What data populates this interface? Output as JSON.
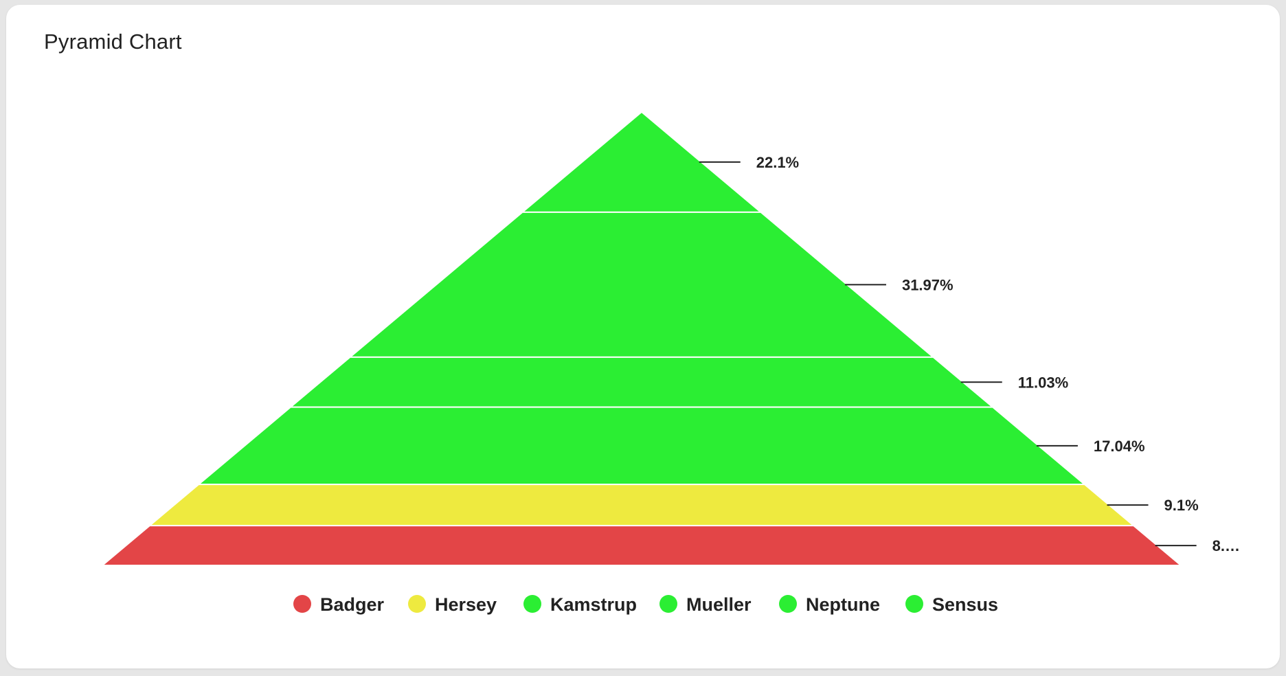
{
  "chart_data": {
    "type": "pyramid",
    "title": "Pyramid Chart",
    "segments": [
      {
        "name": "Sensus",
        "percent": 22.1,
        "label": "22.1%",
        "color": "#2bee33"
      },
      {
        "name": "Neptune",
        "percent": 31.97,
        "label": "31.97%",
        "color": "#2bee33"
      },
      {
        "name": "Mueller",
        "percent": 11.03,
        "label": "11.03%",
        "color": "#2bee33"
      },
      {
        "name": "Kamstrup",
        "percent": 17.04,
        "label": "17.04%",
        "color": "#2bee33"
      },
      {
        "name": "Hersey",
        "percent": 9.1,
        "label": "9.1%",
        "color": "#eeea3f"
      },
      {
        "name": "Badger",
        "percent": 8.76,
        "label": "8.…",
        "color": "#e34547"
      }
    ],
    "legend": [
      {
        "name": "Badger",
        "color": "#e34547"
      },
      {
        "name": "Hersey",
        "color": "#eeea3f"
      },
      {
        "name": "Kamstrup",
        "color": "#2bee33"
      },
      {
        "name": "Mueller",
        "color": "#2bee33"
      },
      {
        "name": "Neptune",
        "color": "#2bee33"
      },
      {
        "name": "Sensus",
        "color": "#2bee33"
      }
    ],
    "legend_position": "bottom"
  }
}
